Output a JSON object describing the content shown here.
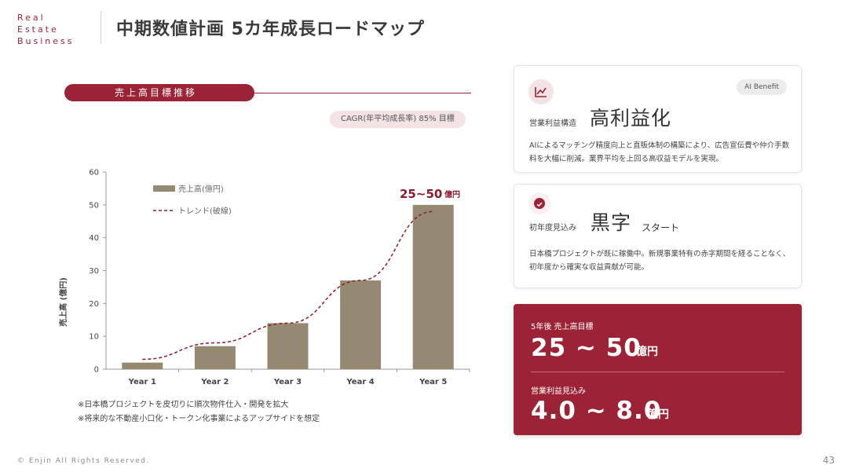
{
  "header": {
    "logo_lines": [
      "Real",
      "Estate",
      "Business"
    ],
    "title": "中期数値計画 5カ年成長ロードマップ"
  },
  "section": {
    "title": "売上高目標推移",
    "cagr": "CAGR(年平均成長率) 85% 目標"
  },
  "chart_data": {
    "type": "bar",
    "categories": [
      "Year 1",
      "Year 2",
      "Year 3",
      "Year 4",
      "Year 5"
    ],
    "series": [
      {
        "name": "売上高(億円)",
        "values": [
          2,
          7,
          14,
          27,
          50
        ],
        "color": "#958a71"
      },
      {
        "name": "トレンド(破線)",
        "type": "line",
        "style": "dashed",
        "color": "#8b1a2b"
      }
    ],
    "ylabel": "売上高 (億円)",
    "ylim": [
      0,
      60
    ],
    "yticks": [
      0,
      10,
      20,
      30,
      40,
      50,
      60
    ],
    "annotation": {
      "value": "25~50",
      "unit": "億円"
    },
    "legend": "top-left",
    "grid": false
  },
  "notes": [
    "※日本橋プロジェクトを皮切りに順次物件仕入・開発を拡大",
    "※将来的な不動産小口化・トークン化事業によるアップサイドを想定"
  ],
  "cards": {
    "profit_structure": {
      "icon": "trend-chart-icon",
      "badge": "AI Benefit",
      "label": "営業利益構造",
      "big": "高利益化",
      "desc": "AIによるマッチング精度向上と直販体制の構築により、広告宣伝費や仲介手数料を大幅に削減。業界平均を上回る高収益モデルを実現。"
    },
    "first_year": {
      "icon": "check-icon",
      "label": "初年度見込み",
      "big": "黒字",
      "suffix": "スタート",
      "desc": "日本橋プロジェクトが既に稼働中。新規事業特有の赤字期間を経ることなく、初年度から確実な収益貢献が可能。"
    },
    "targets": {
      "revenue_label": "5年後 売上高目標",
      "revenue_value": "25 ~ 50",
      "revenue_unit": "億円",
      "profit_label": "営業利益見込み",
      "profit_value": "4.0 ~ 8.0",
      "profit_unit": "億円"
    }
  },
  "footer": {
    "copyright": "© Enjin All Rights Reserved.",
    "page": "43"
  },
  "colors": {
    "accent": "#9b2335",
    "bar": "#958a71",
    "trend": "#8b1a2b"
  }
}
